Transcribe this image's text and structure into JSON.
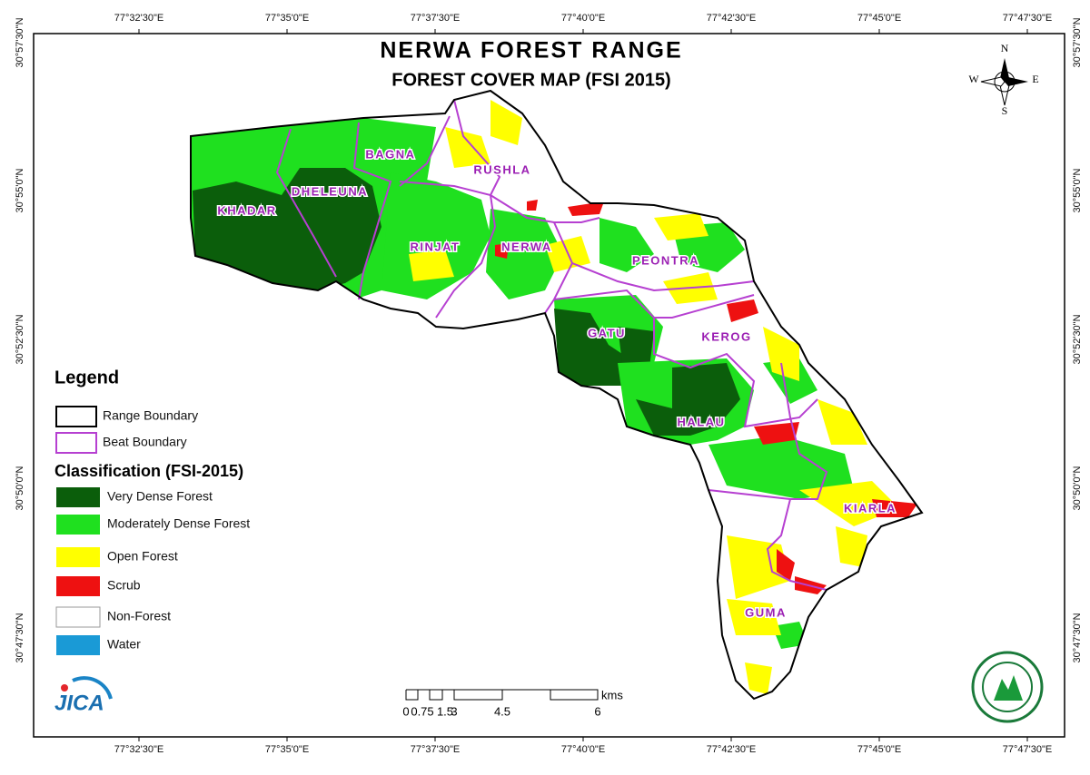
{
  "header": {
    "title": "NERWA FOREST RANGE",
    "subtitle": "FOREST COVER MAP (FSI 2015)"
  },
  "compass": {
    "north": "N",
    "east": "E",
    "south": "S",
    "west": "W"
  },
  "graticule": {
    "longitudes": [
      "77°32'30\"E",
      "77°35'0\"E",
      "77°37'30\"E",
      "77°40'0\"E",
      "77°42'30\"E",
      "77°45'0\"E",
      "77°47'30\"E"
    ],
    "latitudes": [
      "30°57'30\"N",
      "30°55'0\"N",
      "30°52'30\"N",
      "30°50'0\"N",
      "30°47'30\"N"
    ]
  },
  "beats": [
    "BAGNA",
    "RUSHLA",
    "DHELEUNA",
    "KHADAR",
    "RINJAT",
    "NERWA",
    "PEONTRA",
    "GATU",
    "KEROG",
    "HALAU",
    "KIARLA",
    "GUMA"
  ],
  "legend": {
    "title": "Legend",
    "boundaries": [
      "Range Boundary",
      "Beat Boundary"
    ],
    "classification_title": "Classification (FSI-2015)",
    "classes": [
      "Very Dense Forest",
      "Moderately Dense Forest",
      "Open Forest",
      "Scrub",
      "Non-Forest",
      "Water"
    ]
  },
  "scale_bar": {
    "ticks": [
      "0",
      "0.75",
      "1.5",
      "3",
      "4.5",
      "6"
    ],
    "unit": "kms"
  },
  "logo": {
    "text": "JICA"
  }
}
